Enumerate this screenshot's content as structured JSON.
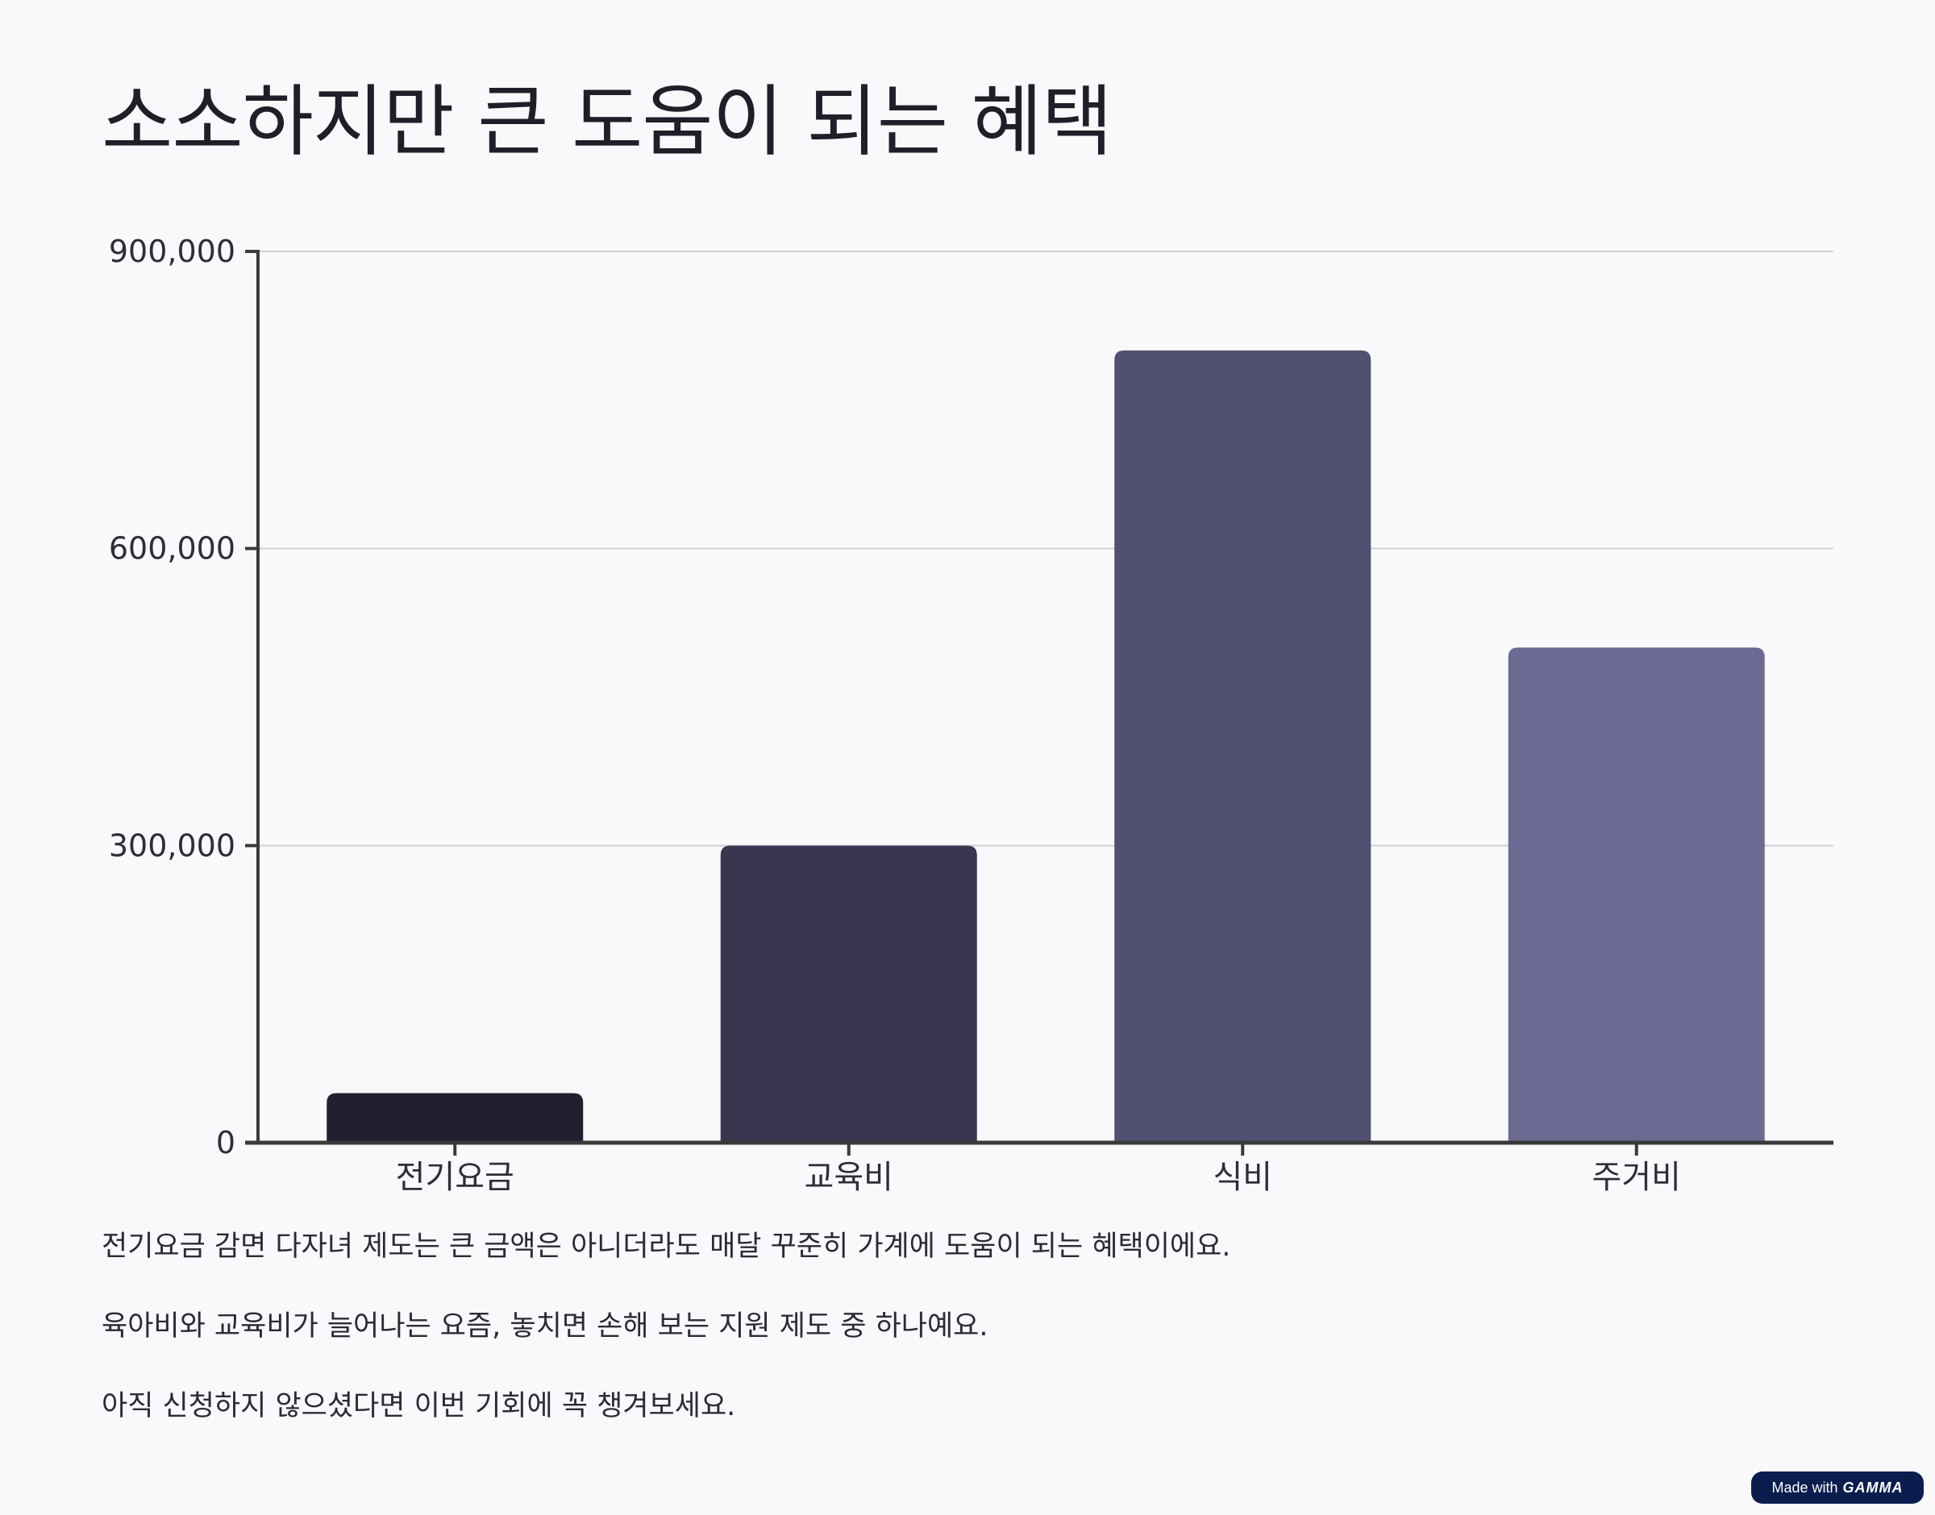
{
  "slide": {
    "title": "소소하지만 큰 도움이 되는 혜택"
  },
  "chart_data": {
    "type": "bar",
    "categories": [
      "전기요금",
      "교육비",
      "식비",
      "주거비"
    ],
    "values": [
      50000,
      300000,
      800000,
      500000
    ],
    "colors": [
      "#20202e",
      "#38374f",
      "#505070",
      "#6a6a93"
    ],
    "ylim": [
      0,
      900000
    ],
    "yticks": [
      0,
      300000,
      600000,
      900000
    ],
    "ytick_labels": [
      "0",
      "300,000",
      "600,000",
      "900,000"
    ],
    "grid": true,
    "legend": "none"
  },
  "paragraphs": [
    "전기요금 감면 다자녀 제도는 큰 금액은 아니더라도 매달 꾸준히 가계에 도움이 되는 혜택이에요.",
    "육아비와 교육비가 늘어나는 요즘, 놓치면 손해 보는 지원 제도 중 하나예요.",
    "아직 신청하지 않으셨다면 이번 기회에 꼭 챙겨보세요."
  ],
  "badge": {
    "prefix": "Made with",
    "brand": "GAMMA"
  }
}
